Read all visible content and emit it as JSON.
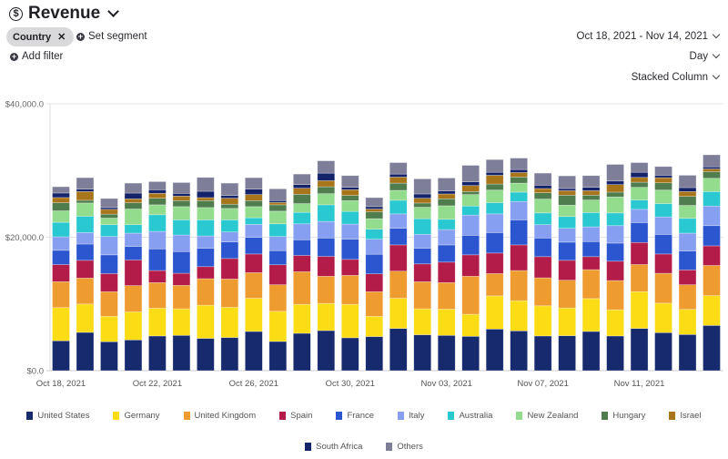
{
  "header": {
    "title": "Revenue",
    "title_icon": "dollar-circle-icon"
  },
  "segment": {
    "chip_label": "Country",
    "set_segment_label": "Set segment"
  },
  "filter": {
    "add_filter_label": "Add filter"
  },
  "controls": {
    "date_range": "Oct 18, 2021 - Nov 14, 2021",
    "interval": "Day",
    "chart_type": "Stacked Column"
  },
  "chart_data": {
    "type": "bar",
    "stacked": true,
    "ylim": [
      0,
      40000
    ],
    "yticks": [
      "$0.0",
      "$20,000.0",
      "$40,000.0"
    ],
    "ytick_values": [
      0,
      20000,
      40000
    ],
    "grid": true,
    "legend_position": "bottom",
    "categories": [
      "Oct 18, 2021",
      "Oct 19, 2021",
      "Oct 20, 2021",
      "Oct 21, 2021",
      "Oct 22, 2021",
      "Oct 23, 2021",
      "Oct 24, 2021",
      "Oct 25, 2021",
      "Oct 26, 2021",
      "Oct 27, 2021",
      "Oct 28, 2021",
      "Oct 29, 2021",
      "Oct 30, 2021",
      "Oct 31, 2021",
      "Nov 01, 2021",
      "Nov 02, 2021",
      "Nov 03, 2021",
      "Nov 04, 2021",
      "Nov 05, 2021",
      "Nov 06, 2021",
      "Nov 07, 2021",
      "Nov 08, 2021",
      "Nov 09, 2021",
      "Nov 10, 2021",
      "Nov 11, 2021",
      "Nov 12, 2021",
      "Nov 13, 2021",
      "Nov 14, 2021"
    ],
    "xtick_labels": [
      "Oct 18, 2021",
      "Oct 22, 2021",
      "Oct 26, 2021",
      "Oct 30, 2021",
      "Nov 03, 2021",
      "Nov 07, 2021",
      "Nov 11, 2021"
    ],
    "series": [
      {
        "name": "United States",
        "color": "#172a6e",
        "values": [
          4480,
          5740,
          4340,
          4610,
          5200,
          5290,
          4840,
          4970,
          5880,
          4380,
          5600,
          6010,
          4930,
          5110,
          6330,
          5380,
          5290,
          5150,
          6240,
          5970,
          5200,
          5240,
          5880,
          5200,
          6330,
          5700,
          5420,
          6780
        ]
      },
      {
        "name": "Germany",
        "color": "#fcdc14",
        "values": [
          4970,
          4250,
          3800,
          4200,
          4160,
          3980,
          4970,
          4520,
          4970,
          4520,
          4340,
          4070,
          5010,
          3030,
          4520,
          3890,
          3930,
          3300,
          4970,
          4520,
          4520,
          4160,
          4920,
          3930,
          5510,
          4420,
          3760,
          4470
        ]
      },
      {
        "name": "United Kingdom",
        "color": "#ee9c30",
        "values": [
          3890,
          3890,
          3700,
          3940,
          3840,
          3520,
          3980,
          4250,
          3840,
          3980,
          4890,
          4070,
          4340,
          3700,
          4070,
          4060,
          3980,
          5700,
          3340,
          4520,
          4200,
          4160,
          4340,
          4380,
          4070,
          4480,
          3700,
          4520
        ]
      },
      {
        "name": "Spain",
        "color": "#b31b48",
        "values": [
          2560,
          2660,
          2710,
          3840,
          1810,
          1810,
          1800,
          3070,
          2800,
          2990,
          2440,
          2980,
          2400,
          2670,
          3930,
          2670,
          3070,
          3210,
          3080,
          3840,
          3170,
          2980,
          1950,
          2900,
          3300,
          2890,
          2220,
          2940
        ]
      },
      {
        "name": "France",
        "color": "#2c55d0",
        "values": [
          2140,
          2440,
          2810,
          2030,
          3250,
          3250,
          2760,
          2490,
          2490,
          2120,
          2350,
          2760,
          3030,
          2940,
          2490,
          2350,
          2580,
          2930,
          3070,
          3750,
          2800,
          2720,
          2260,
          2710,
          2980,
          2940,
          2840,
          3030
        ]
      },
      {
        "name": "Italy",
        "color": "#879ff0",
        "values": [
          2030,
          1720,
          2750,
          1990,
          2620,
          2490,
          1850,
          1490,
          1940,
          2120,
          2390,
          2480,
          2260,
          2260,
          2160,
          2080,
          2300,
          3030,
          2800,
          2760,
          1990,
          2080,
          2210,
          2620,
          1990,
          2620,
          2670,
          2940
        ]
      },
      {
        "name": "Australia",
        "color": "#2ac8d0",
        "values": [
          2170,
          2440,
          1770,
          1270,
          2490,
          2260,
          2400,
          1810,
          1000,
          1900,
          1720,
          2490,
          1900,
          1490,
          2040,
          2350,
          1540,
          1360,
          1680,
          1400,
          1760,
          1760,
          2130,
          1900,
          1400,
          1990,
          2220,
          2170
        ]
      },
      {
        "name": "New Zealand",
        "color": "#93dc8e",
        "values": [
          1720,
          1990,
          990,
          2350,
          1490,
          1990,
          1850,
          1720,
          1670,
          1900,
          1310,
          1670,
          1620,
          1580,
          1490,
          1720,
          2030,
          1720,
          1890,
          1350,
          2080,
          1710,
          1890,
          2400,
          1900,
          2030,
          1940,
          1990
        ]
      },
      {
        "name": "Hungary",
        "color": "#4f7d4e",
        "values": [
          1220,
          410,
          590,
          950,
          990,
          900,
          1040,
          630,
          900,
          950,
          1400,
          1040,
          770,
          1040,
          1080,
          630,
          1040,
          450,
          910,
          910,
          950,
          1500,
          730,
          720,
          770,
          1090,
          1360,
          990
        ]
      },
      {
        "name": "Israel",
        "color": "#a8751a",
        "values": [
          770,
          1310,
          720,
          580,
          730,
          680,
          450,
          900,
          910,
          360,
          910,
          910,
          860,
          410,
          910,
          720,
          730,
          900,
          1310,
          680,
          630,
          670,
          670,
          1130,
          720,
          770,
          720,
          410
        ]
      },
      {
        "name": "South Africa",
        "color": "#14236a",
        "values": [
          680,
          360,
          270,
          860,
          540,
          410,
          950,
          410,
          810,
          270,
          540,
          1130,
          360,
          360,
          450,
          640,
          450,
          550,
          450,
          450,
          500,
          320,
          500,
          540,
          770,
          360,
          590,
          310
        ]
      },
      {
        "name": "Others",
        "color": "#7e7e99",
        "values": [
          940,
          1720,
          1360,
          1490,
          1220,
          1620,
          2080,
          1850,
          1720,
          1770,
          1580,
          1850,
          1760,
          1350,
          1720,
          2260,
          1940,
          2480,
          1900,
          1720,
          1810,
          1900,
          1760,
          2490,
          1450,
          1310,
          1850,
          1810
        ]
      }
    ]
  }
}
